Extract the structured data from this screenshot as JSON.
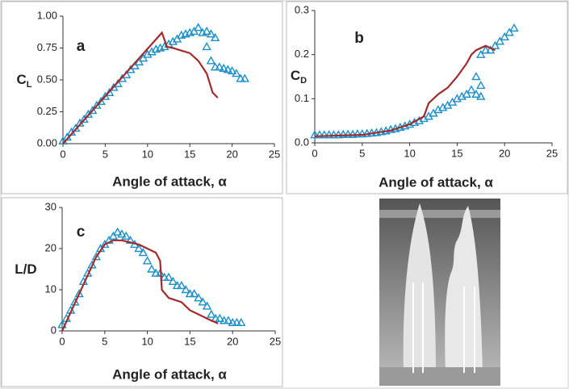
{
  "chart_data": [
    {
      "type": "line",
      "panel": "a",
      "x_label": "Angle of attack, α",
      "y_label": "C",
      "y_label_sub": "L",
      "xlim": [
        0,
        25
      ],
      "xticks": [
        0,
        5,
        10,
        15,
        20,
        25
      ],
      "ylim": [
        0,
        1
      ],
      "yticks": [
        {
          "value": 0,
          "label": "0.00"
        },
        {
          "value": 0.25,
          "label": "0.25"
        },
        {
          "value": 0.5,
          "label": "0.50"
        },
        {
          "value": 0.75,
          "label": "0.75"
        },
        {
          "value": 1,
          "label": "1.00"
        }
      ],
      "series": [
        {
          "style": "markers",
          "color": "#1a8fc9",
          "x": [
            0,
            0.5,
            1,
            1.5,
            2,
            2.5,
            3,
            3.5,
            4,
            4.5,
            5,
            5.5,
            6,
            6.5,
            7,
            7.5,
            8,
            8.5,
            9,
            9.5,
            10,
            10.5,
            11,
            11.5,
            12,
            12.5,
            13,
            13.5,
            14,
            14.5,
            15,
            15.5,
            16,
            16.5,
            17,
            17.5,
            18,
            17,
            17.5,
            18,
            18.5,
            19,
            19.5,
            20,
            20.5,
            21,
            21.5
          ],
          "values": [
            0.02,
            0.05,
            0.09,
            0.12,
            0.16,
            0.19,
            0.23,
            0.26,
            0.3,
            0.33,
            0.37,
            0.4,
            0.44,
            0.47,
            0.51,
            0.54,
            0.58,
            0.61,
            0.64,
            0.67,
            0.7,
            0.72,
            0.74,
            0.75,
            0.76,
            0.78,
            0.8,
            0.82,
            0.85,
            0.86,
            0.87,
            0.88,
            0.91,
            0.87,
            0.88,
            0.86,
            0.83,
            0.76,
            0.65,
            0.6,
            0.6,
            0.59,
            0.58,
            0.57,
            0.55,
            0.51,
            0.51
          ]
        },
        {
          "style": "line",
          "color": "#a32a2a",
          "x": [
            0,
            11.7,
            12.3,
            13,
            14,
            15,
            16,
            17,
            17.7,
            18.3
          ],
          "values": [
            0,
            0.87,
            0.76,
            0.75,
            0.73,
            0.71,
            0.65,
            0.55,
            0.4,
            0.36
          ]
        }
      ]
    },
    {
      "type": "line",
      "panel": "b",
      "x_label": "Angle of attack, α",
      "y_label": "C",
      "y_label_sub": "D",
      "xlim": [
        0,
        25
      ],
      "xticks": [
        0,
        5,
        10,
        15,
        20,
        25
      ],
      "ylim": [
        0,
        0.3
      ],
      "yticks": [
        {
          "value": 0,
          "label": "0.0"
        },
        0.1,
        0.2,
        0.3
      ],
      "series": [
        {
          "style": "markers",
          "color": "#1a8fc9",
          "x": [
            0,
            0.5,
            1,
            1.5,
            2,
            2.5,
            3,
            3.5,
            4,
            4.5,
            5,
            5.5,
            6,
            6.5,
            7,
            7.5,
            8,
            8.5,
            9,
            9.5,
            10,
            10.5,
            11,
            11.5,
            12,
            12.5,
            13,
            13.5,
            14,
            14.5,
            15,
            15.5,
            16,
            16.5,
            17,
            17.5,
            17,
            17.5,
            17.5,
            18,
            18.5,
            19,
            19.5,
            20,
            20.5,
            21
          ],
          "values": [
            0.018,
            0.018,
            0.018,
            0.018,
            0.018,
            0.018,
            0.019,
            0.019,
            0.019,
            0.02,
            0.02,
            0.021,
            0.022,
            0.023,
            0.025,
            0.027,
            0.03,
            0.032,
            0.035,
            0.038,
            0.042,
            0.046,
            0.05,
            0.055,
            0.06,
            0.067,
            0.075,
            0.08,
            0.085,
            0.092,
            0.1,
            0.105,
            0.11,
            0.12,
            0.15,
            0.13,
            0.11,
            0.105,
            0.2,
            0.21,
            0.21,
            0.22,
            0.23,
            0.24,
            0.25,
            0.26
          ]
        },
        {
          "style": "line",
          "color": "#a32a2a",
          "x": [
            0,
            5,
            8,
            10,
            11.5,
            12,
            13,
            14,
            15,
            16,
            16.5,
            17,
            18,
            19
          ],
          "values": [
            0.015,
            0.018,
            0.028,
            0.042,
            0.06,
            0.09,
            0.11,
            0.125,
            0.15,
            0.18,
            0.2,
            0.21,
            0.22,
            0.21
          ]
        }
      ]
    },
    {
      "type": "line",
      "panel": "c",
      "x_label": "Angle of attack, α",
      "y_label": "L/D",
      "xlim": [
        0,
        25
      ],
      "xticks": [
        0,
        5,
        10,
        15,
        20,
        25
      ],
      "ylim": [
        0,
        30
      ],
      "yticks": [
        0,
        10,
        20,
        30
      ],
      "series": [
        {
          "style": "markers",
          "color": "#1a8fc9",
          "x": [
            0,
            0.5,
            1,
            1.5,
            2,
            2.5,
            3,
            3.5,
            4,
            4.5,
            5,
            5.5,
            6,
            6.5,
            7,
            7.5,
            8,
            8.5,
            9,
            9.5,
            10,
            10.5,
            11,
            11.5,
            12,
            12.5,
            13,
            13.5,
            14,
            14.5,
            15,
            15.5,
            16,
            16.5,
            17,
            17.5,
            18,
            18.5,
            19,
            19.5,
            20,
            20.5,
            21
          ],
          "values": [
            1.5,
            3,
            5,
            7,
            9,
            12,
            14,
            16,
            18,
            20,
            21,
            22,
            23,
            24,
            23.5,
            23,
            22,
            21,
            20,
            19,
            17,
            15,
            14,
            14,
            13,
            13,
            12,
            11,
            11,
            10,
            9,
            9,
            8,
            7,
            6,
            4,
            3,
            3,
            2.5,
            2.5,
            2,
            2,
            2
          ]
        },
        {
          "style": "line",
          "color": "#a32a2a",
          "x": [
            0,
            2,
            4,
            5,
            6,
            7,
            8,
            9,
            10,
            11,
            11.5,
            11.7,
            12.5,
            14,
            15,
            17,
            18.3
          ],
          "values": [
            0,
            9,
            18,
            21,
            22,
            22,
            21.5,
            21,
            20,
            19,
            17,
            10,
            8,
            7,
            5,
            3,
            1.8
          ]
        }
      ]
    }
  ]
}
